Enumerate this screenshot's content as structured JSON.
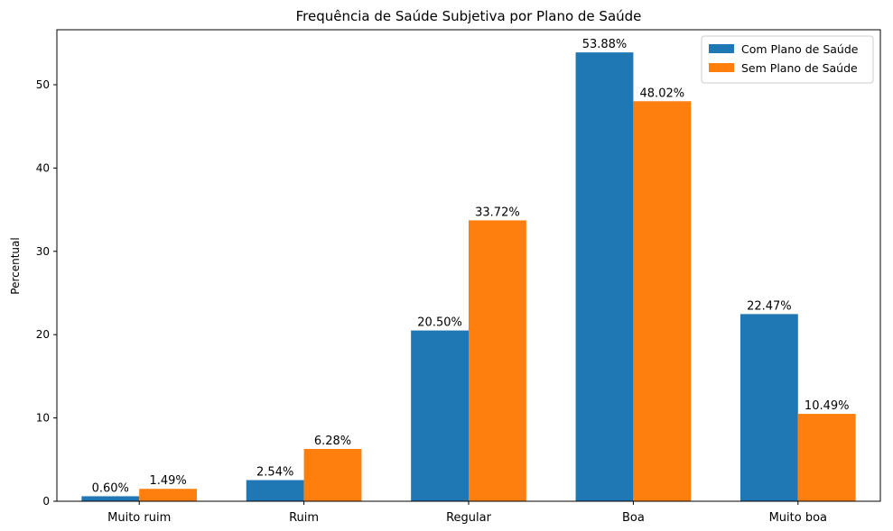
{
  "chart_data": {
    "type": "bar",
    "title": "Frequência de Saúde Subjetiva por Plano de Saúde",
    "xlabel": "",
    "ylabel": "Percentual",
    "categories": [
      "Muito ruim",
      "Ruim",
      "Regular",
      "Boa",
      "Muito boa"
    ],
    "series": [
      {
        "name": "Com Plano de Saúde",
        "color": "#1f77b4",
        "values": [
          0.6,
          2.54,
          20.5,
          53.88,
          22.47
        ],
        "labels": [
          "0.60%",
          "2.54%",
          "20.50%",
          "53.88%",
          "22.47%"
        ]
      },
      {
        "name": "Sem Plano de Saúde",
        "color": "#ff7f0e",
        "values": [
          1.49,
          6.28,
          33.72,
          48.02,
          10.49
        ],
        "labels": [
          "1.49%",
          "6.28%",
          "33.72%",
          "48.02%",
          "10.49%"
        ]
      }
    ],
    "ylim": [
      0,
      56.6
    ],
    "yticks": [
      "0",
      "10",
      "20",
      "30",
      "40",
      "50"
    ],
    "grid": false,
    "legend_position": "top-right"
  }
}
